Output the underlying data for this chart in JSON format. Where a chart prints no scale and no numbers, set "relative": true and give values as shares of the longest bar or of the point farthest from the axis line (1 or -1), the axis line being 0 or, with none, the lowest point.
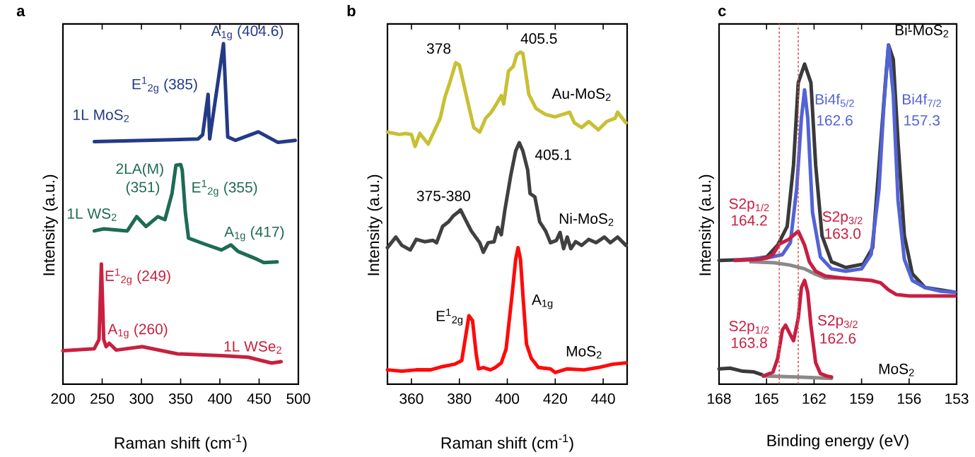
{
  "chart_data": [
    {
      "type": "line",
      "title": "a",
      "xlabel": "Raman shift (cm$^{-1}$)",
      "ylabel": "Intensity (a.u.)",
      "relative": true,
      "tick_labels": "x",
      "xlim": [
        200,
        500
      ],
      "xticks": [
        200,
        250,
        300,
        350,
        400,
        450,
        500
      ],
      "series": [
        {
          "name": "1L MoS$_{2}$",
          "color": "#233a86",
          "x": [
            240,
            372,
            378,
            385,
            387,
            404.6,
            410,
            420,
            449,
            474,
            496
          ],
          "values": [
            0.712,
            0.72,
            0.732,
            0.851,
            0.72,
            1.0,
            0.726,
            0.716,
            0.741,
            0.71,
            0.716
          ]
        },
        {
          "name": "1L WS$_{2}$",
          "color": "#1e6b55",
          "x": [
            240,
            252,
            282,
            294,
            306,
            321,
            330,
            339,
            344,
            350,
            352,
            356,
            360,
            381,
            402,
            414,
            423,
            447,
            456,
            473
          ],
          "values": [
            0.45,
            0.456,
            0.45,
            0.492,
            0.463,
            0.492,
            0.483,
            0.56,
            0.643,
            0.645,
            0.629,
            0.504,
            0.429,
            0.411,
            0.394,
            0.409,
            0.39,
            0.367,
            0.357,
            0.359
          ]
        },
        {
          "name": "1L WSe$_{2}$",
          "color": "#c8203f",
          "x": [
            200,
            240,
            246,
            249,
            252,
            255,
            259,
            268,
            301,
            346,
            406,
            436,
            466,
            478
          ],
          "values": [
            0.098,
            0.104,
            0.131,
            0.353,
            0.131,
            0.11,
            0.12,
            0.1,
            0.11,
            0.089,
            0.083,
            0.079,
            0.062,
            0.066
          ]
        }
      ],
      "annotations": [
        "A$_{1g}$ (404.6)",
        "E$^{1}$$_{2g}$ (385)",
        "2LA(M)",
        "(351)",
        "E$^{1}$$_{2g}$ (355)",
        "A$_{1g}$ (417)",
        "E$^{1}$$_{2g}$ (249)",
        "A$_{1g}$ (260)"
      ]
    },
    {
      "type": "line",
      "title": "b",
      "xlabel": "Raman shift (cm$^{-1}$)",
      "ylabel": "Intensity (a.u.)",
      "relative": true,
      "tick_labels": "x",
      "xlim": [
        350,
        450
      ],
      "xticks": [
        360,
        380,
        400,
        420,
        440
      ],
      "series": [
        {
          "name": "Au-MoS$_{2}$",
          "color": "#c8c034",
          "x": [
            350,
            355,
            357.5,
            360,
            361.5,
            363.5,
            367,
            372,
            374,
            376,
            378.5,
            380,
            383.5,
            386,
            388.5,
            391,
            393,
            395.5,
            397.5,
            398.5,
            400.5,
            402.5,
            404,
            405.5,
            406.5,
            409,
            412,
            416,
            420,
            426,
            428,
            431,
            434,
            438,
            441.5,
            445,
            446,
            449.5
          ],
          "values": [
            0.759,
            0.752,
            0.755,
            0.752,
            0.716,
            0.755,
            0.723,
            0.801,
            0.865,
            0.908,
            0.968,
            0.961,
            0.851,
            0.773,
            0.759,
            0.801,
            0.816,
            0.844,
            0.869,
            0.844,
            0.943,
            0.957,
            0.993,
            1.0,
            0.996,
            0.872,
            0.83,
            0.812,
            0.805,
            0.819,
            0.787,
            0.773,
            0.791,
            0.766,
            0.791,
            0.801,
            0.819,
            0.787
          ]
        },
        {
          "name": "Ni-MoS$_{2}$",
          "color": "#404040",
          "x": [
            350,
            353.5,
            356,
            359.5,
            362,
            365.5,
            369,
            370.5,
            373,
            375.5,
            377.5,
            379.5,
            380.5,
            382.5,
            385,
            388.5,
            390,
            392,
            394.5,
            396,
            397.5,
            399,
            401.5,
            403.5,
            405,
            406.5,
            408.5,
            409.5,
            411.5,
            413.5,
            416,
            418,
            420.5,
            422,
            423.5,
            425,
            426.5,
            428.5,
            431,
            434,
            437,
            440.5,
            443,
            446,
            449.5
          ],
          "values": [
            0.411,
            0.443,
            0.418,
            0.404,
            0.436,
            0.429,
            0.433,
            0.426,
            0.475,
            0.489,
            0.507,
            0.518,
            0.525,
            0.496,
            0.461,
            0.426,
            0.397,
            0.426,
            0.429,
            0.472,
            0.45,
            0.525,
            0.631,
            0.702,
            0.727,
            0.702,
            0.645,
            0.574,
            0.564,
            0.489,
            0.461,
            0.426,
            0.433,
            0.457,
            0.408,
            0.443,
            0.408,
            0.429,
            0.418,
            0.436,
            0.426,
            0.443,
            0.426,
            0.443,
            0.418
          ]
        },
        {
          "name": "MoS$_{2}$",
          "color": "#ff0a0a",
          "x": [
            350,
            356,
            362,
            368,
            373,
            378,
            381,
            384,
            385.5,
            387,
            388,
            390,
            393,
            395,
            397.5,
            399.5,
            402,
            403.5,
            404.5,
            405.5,
            406.5,
            408,
            410,
            413,
            418,
            420,
            425,
            432,
            438,
            444,
            449.5
          ],
          "values": [
            0.043,
            0.039,
            0.043,
            0.043,
            0.053,
            0.06,
            0.071,
            0.206,
            0.191,
            0.092,
            0.046,
            0.05,
            0.043,
            0.05,
            0.064,
            0.106,
            0.27,
            0.376,
            0.411,
            0.376,
            0.27,
            0.121,
            0.078,
            0.05,
            0.046,
            0.035,
            0.046,
            0.043,
            0.05,
            0.06,
            0.064
          ]
        }
      ],
      "annotations": [
        "378",
        "405.5",
        "405.1",
        "375-380",
        "E$^{1}$$_{2g}$",
        "A$_{1g}$"
      ]
    },
    {
      "type": "line",
      "title": "c",
      "xlabel": "Binding energy (eV)",
      "ylabel": "Intensity (a.u.)",
      "relative": true,
      "tick_labels": "x",
      "xlim": [
        168,
        153
      ],
      "xticks": [
        168,
        165,
        162,
        159,
        156,
        153
      ],
      "series": [
        {
          "name": "Bi-MoS$_{2}$",
          "color": "#3a3a3a",
          "x": [
            168,
            166,
            165,
            164.3,
            163.7,
            163.3,
            163.0,
            162.6,
            162.2,
            161.9,
            161.5,
            160.9,
            160,
            158.9,
            158.3,
            157.8,
            157.5,
            157.3,
            157.0,
            156.7,
            156.3,
            155.8,
            155,
            154,
            153.1
          ],
          "values": [
            0.365,
            0.368,
            0.375,
            0.41,
            0.465,
            0.646,
            0.889,
            0.944,
            0.889,
            0.646,
            0.438,
            0.361,
            0.344,
            0.354,
            0.403,
            null,
            0.889,
            1.0,
            0.958,
            0.715,
            0.438,
            0.326,
            0.285,
            null,
            0.271
          ]
        },
        {
          "color": "#8a8a8a",
          "x": [
            166,
            164.5,
            163.5,
            162.6,
            162.0,
            161.3,
            160.3
          ],
          "values": [
            0.361,
            0.358,
            0.351,
            0.34,
            0.326,
            0.313,
            0.313
          ]
        },
        {
          "color": "#5263d6",
          "x": [
            166.5,
            165,
            164,
            163.5,
            163.1,
            162.8,
            162.6,
            162.4,
            162.1,
            161.6,
            160.9,
            160,
            159,
            158.4,
            157.9,
            157.6,
            157.3,
            157.0,
            156.7,
            156.3,
            155.8,
            155,
            154,
            153.1
          ],
          "values": [
            0.368,
            0.372,
            0.382,
            0.417,
            0.576,
            0.785,
            0.868,
            0.785,
            0.507,
            0.375,
            0.34,
            0.333,
            0.34,
            0.382,
            0.576,
            0.819,
            1.0,
            0.854,
            0.542,
            0.368,
            0.306,
            0.285,
            0.274,
            0.271
          ]
        },
        {
          "color": "#c81e42",
          "x": [
            167,
            165.5,
            165,
            164.6,
            164.2,
            163.9,
            163.6,
            163.0,
            162.6,
            162.3,
            161.9,
            161.3,
            160.3,
            159.2,
            158.4,
            157.8,
            157.3,
            156.8,
            156.0,
            153.1
          ],
          "values": [
            0.365,
            0.368,
            0.372,
            0.382,
            0.413,
            0.42,
            0.427,
            0.451,
            0.41,
            0.361,
            0.333,
            0.319,
            0.313,
            0.309,
            0.306,
            0.299,
            0.278,
            0.264,
            0.26,
            0.26
          ]
        },
        {
          "color": "#3a3a3a",
          "x": [
            168,
            167.3,
            166.5,
            165.8,
            165.3
          ],
          "values": [
            0.045,
            0.047,
            0.038,
            0.036,
            0.028
          ]
        },
        {
          "color": "#8a8a8a",
          "x": [
            165.2,
            163,
            160.9
          ],
          "values": [
            0.024,
            0.021,
            0.017
          ]
        },
        {
          "color": "#c81e42",
          "x": [
            165.2,
            164.6,
            164.3,
            164.0,
            163.8,
            163.5,
            163.3,
            163.0,
            162.8,
            162.6,
            162.4,
            162.2,
            161.9,
            161.6,
            161.2,
            160.9
          ],
          "values": [
            0.024,
            0.035,
            0.076,
            0.16,
            0.174,
            0.146,
            0.128,
            0.194,
            0.285,
            0.306,
            0.271,
            0.174,
            0.063,
            0.031,
            0.024,
            0.021
          ]
        }
      ],
      "ref_lines": [
        {
          "axis": "x",
          "value": 164.2,
          "color": "#d9534f",
          "line_style": "dashed"
        },
        {
          "axis": "x",
          "value": 163.0,
          "color": "#d9534f",
          "line_style": "dashed"
        }
      ],
      "annotations": [
        "Bi4f$_{5/2}$",
        "162.6",
        "Bi4f$_{7/2}$",
        "157.3",
        "S2p$_{1/2}$",
        "164.2",
        "S2p$_{3/2}$",
        "163.0",
        "S2p$_{1/2}$",
        "163.8",
        "S2p$_{3/2}$",
        "162.6",
        "MoS$_{2}$"
      ]
    }
  ]
}
